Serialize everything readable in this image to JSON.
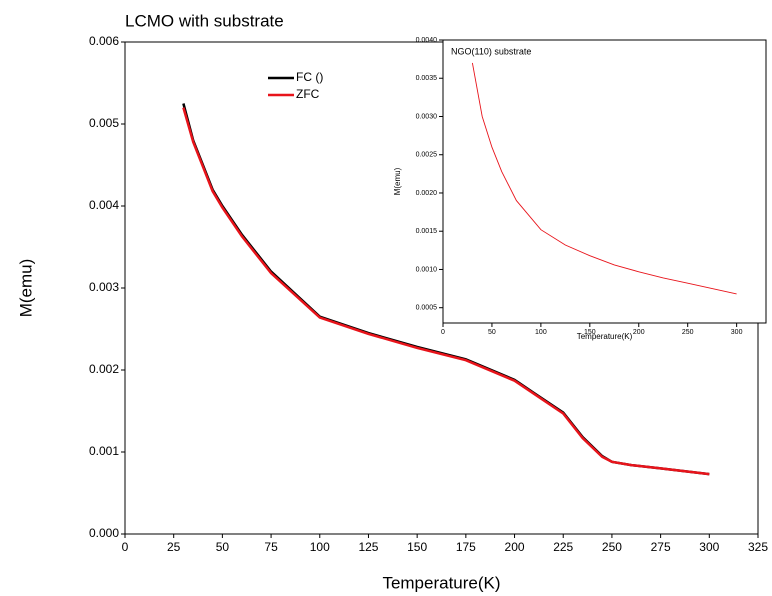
{
  "chart_data": [
    {
      "type": "line",
      "title": "LCMO with substrate",
      "xlabel": "Temperature(K)",
      "ylabel": "M(emu)",
      "x": [
        30,
        35,
        40,
        45,
        50,
        60,
        75,
        100,
        125,
        150,
        175,
        200,
        210,
        225,
        235,
        245,
        250,
        260,
        275,
        300
      ],
      "series": [
        {
          "name": "FC ()",
          "color": "#000000",
          "values": [
            0.00525,
            0.0048,
            0.0045,
            0.0042,
            0.004,
            0.00365,
            0.0032,
            0.00265,
            0.00245,
            0.00228,
            0.00213,
            0.00188,
            0.00172,
            0.00148,
            0.00118,
            0.00095,
            0.00088,
            0.00084,
            0.0008,
            0.00073
          ]
        },
        {
          "name": "ZFC",
          "color": "#e8141b",
          "values": [
            0.0052,
            0.00478,
            0.00448,
            0.00418,
            0.00398,
            0.00363,
            0.00318,
            0.00264,
            0.00244,
            0.00227,
            0.00212,
            0.00187,
            0.00171,
            0.00147,
            0.00117,
            0.00094,
            0.00088,
            0.00084,
            0.0008,
            0.00073
          ]
        }
      ],
      "xlim": [
        0,
        325
      ],
      "xticks": [
        0,
        25,
        50,
        75,
        100,
        125,
        150,
        175,
        200,
        225,
        250,
        275,
        300,
        325
      ],
      "ylim": [
        0,
        0.006
      ],
      "yticks": [
        {
          "value": 0,
          "label": "0.000"
        },
        {
          "value": 0.001,
          "label": "0.001"
        },
        {
          "value": 0.002,
          "label": "0.002"
        },
        {
          "value": 0.003,
          "label": "0.003"
        },
        {
          "value": 0.004,
          "label": "0.004"
        },
        {
          "value": 0.005,
          "label": "0.005"
        },
        {
          "value": 0.006,
          "label": "0.006"
        }
      ],
      "legend": "top"
    },
    {
      "type": "line",
      "annotation": "NGO(110) substrate",
      "xlabel": "Temperature(K)",
      "ylabel": "M(emu)",
      "x": [
        30,
        40,
        50,
        60,
        75,
        100,
        125,
        150,
        175,
        200,
        225,
        250,
        275,
        300
      ],
      "series": [
        {
          "color": "#e8141b",
          "values": [
            0.0037,
            0.003,
            0.0026,
            0.00228,
            0.0019,
            0.00152,
            0.00132,
            0.00118,
            0.00106,
            0.00097,
            0.00089,
            0.00082,
            0.00075,
            0.00068
          ]
        }
      ],
      "xlim": [
        0,
        330
      ],
      "xticks": [
        0,
        50,
        100,
        150,
        200,
        250,
        300
      ],
      "ylim": [
        0.0003,
        0.004
      ],
      "yticks": [
        {
          "value": 0.0005,
          "label": "0.0005"
        },
        {
          "value": 0.001,
          "label": "0.0010"
        },
        {
          "value": 0.0015,
          "label": "0.0015"
        },
        {
          "value": 0.002,
          "label": "0.0020"
        },
        {
          "value": 0.0025,
          "label": "0.0025"
        },
        {
          "value": 0.003,
          "label": "0.0030"
        },
        {
          "value": 0.0035,
          "label": "0.0035"
        },
        {
          "value": 0.004,
          "label": "0.0040"
        }
      ]
    }
  ]
}
